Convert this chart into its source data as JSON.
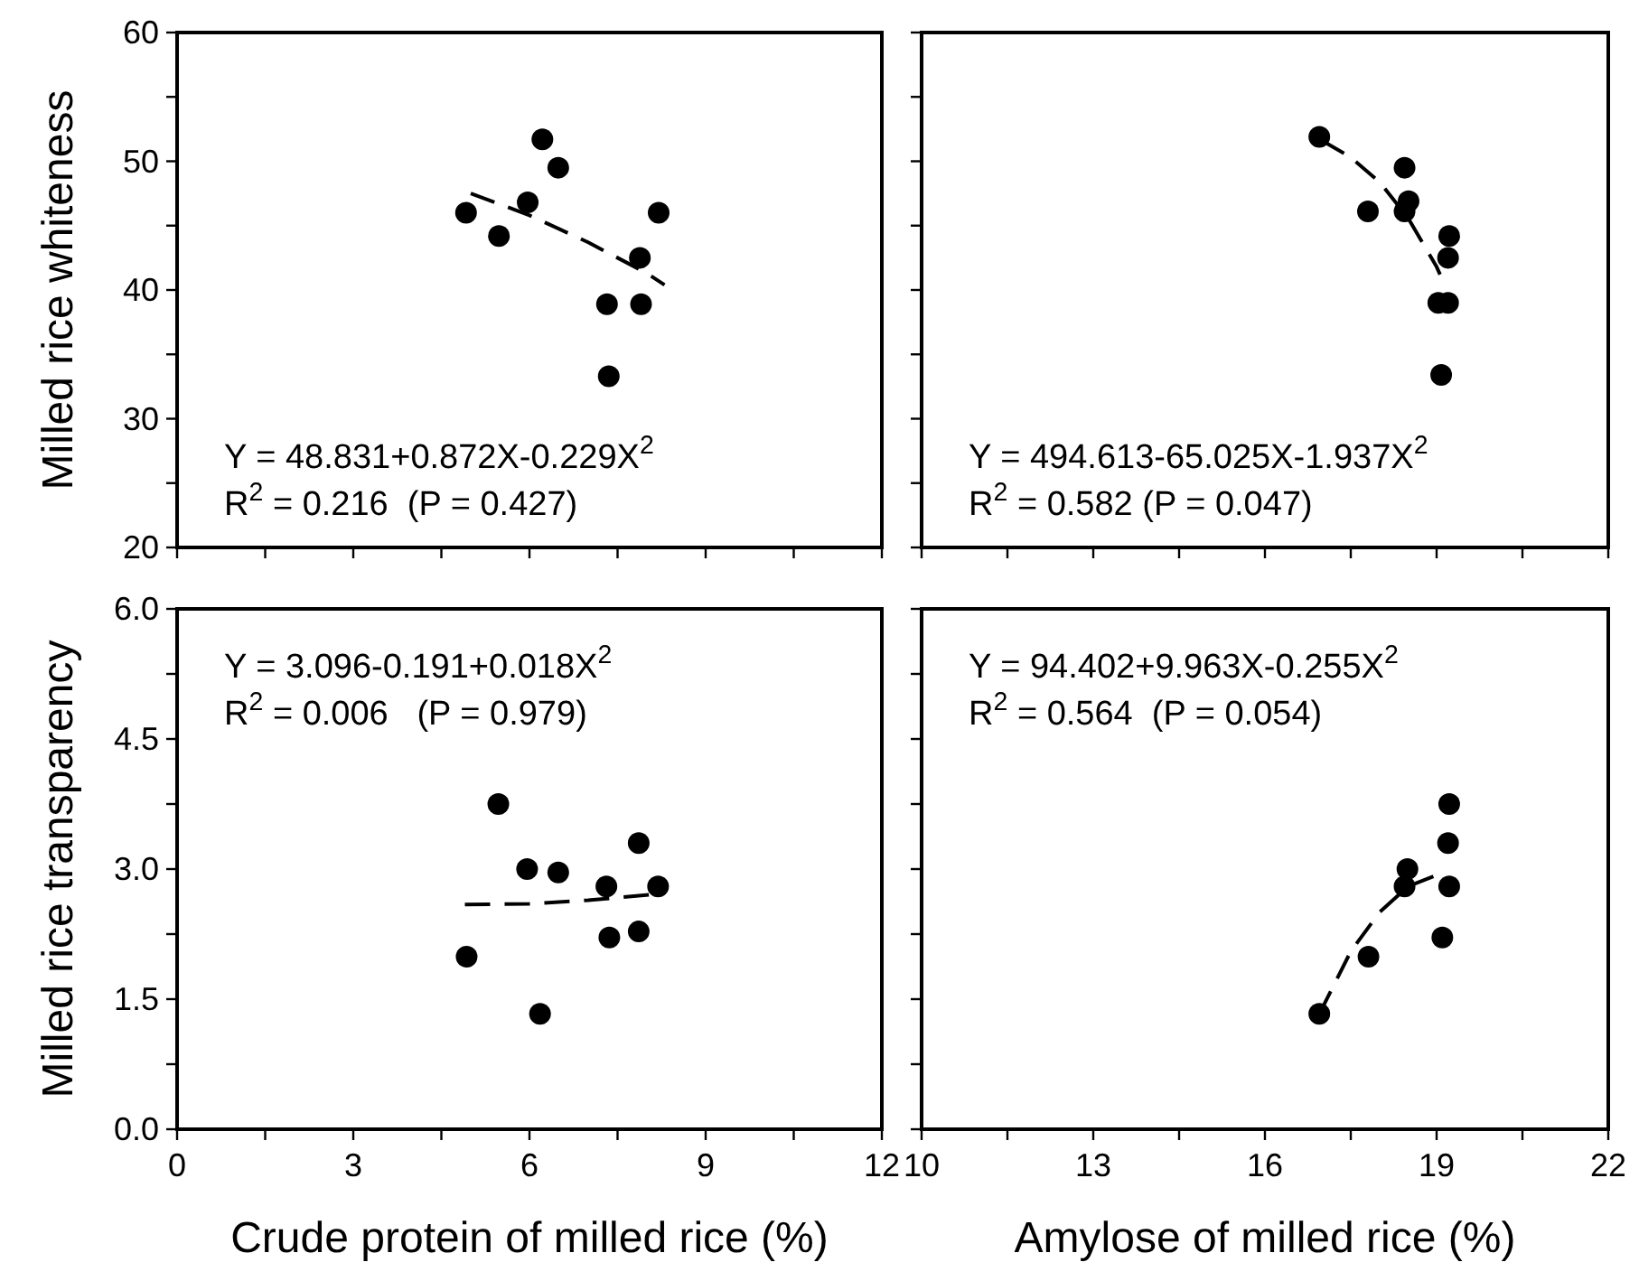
{
  "chart_data": [
    {
      "type": "scatter",
      "ylabel": "Milled rice whiteness",
      "xlim": [
        0,
        12
      ],
      "ylim": [
        20,
        60
      ],
      "xticks": [
        0,
        {
          "value": 1.5,
          "label": null
        },
        3,
        {
          "value": 4.5,
          "label": null
        },
        6,
        {
          "value": 7.5,
          "label": null
        },
        9,
        {
          "value": 10.5,
          "label": null
        },
        12
      ],
      "yticks": [
        20,
        {
          "value": 25,
          "label": null
        },
        30,
        {
          "value": 35,
          "label": null
        },
        40,
        {
          "value": 45,
          "label": null
        },
        50,
        {
          "value": 55,
          "label": null
        },
        60
      ],
      "tick_labels": "y",
      "annotations": [
        "Y = 48.831+0.872X-0.229X$^{2}$",
        "R$^{2}$ = 0.216  (P = 0.427)"
      ],
      "series": [
        {
          "color": "#000000",
          "marker": "circle",
          "x": [
            4.92,
            5.48,
            5.97,
            6.22,
            6.49,
            7.32,
            7.35,
            7.88,
            7.9,
            8.2
          ],
          "values": [
            46,
            44.2,
            46.8,
            51.7,
            49.5,
            38.9,
            33.3,
            42.5,
            38.9,
            46
          ]
        },
        {
          "type": "line",
          "color": "#000000",
          "line_style": "dashed",
          "x": [
            5,
            6,
            7,
            8,
            8.3
          ],
          "values": [
            47.5,
            45.8,
            43.7,
            41.3,
            40.4
          ]
        }
      ]
    },
    {
      "type": "scatter",
      "xlim": [
        10,
        22
      ],
      "ylim": [
        20,
        60
      ],
      "xticks": [
        10,
        {
          "value": 11.5,
          "label": null
        },
        13,
        {
          "value": 14.5,
          "label": null
        },
        16,
        {
          "value": 17.5,
          "label": null
        },
        19,
        {
          "value": 20.5,
          "label": null
        },
        22
      ],
      "yticks": [
        20,
        {
          "value": 25,
          "label": null
        },
        30,
        {
          "value": 35,
          "label": null
        },
        40,
        {
          "value": 45,
          "label": null
        },
        50,
        {
          "value": 55,
          "label": null
        },
        60
      ],
      "tick_labels": false,
      "annotations": [
        "Y = 494.613-65.025X-1.937X$^{2}$",
        "R$^{2}$ = 0.582 (P = 0.047)"
      ],
      "series": [
        {
          "color": "#000000",
          "marker": "circle",
          "x": [
            16.95,
            17.8,
            18.44,
            18.51,
            18.44,
            19.22,
            19.2,
            19.03,
            19.2,
            19.08
          ],
          "values": [
            51.9,
            46.1,
            49.5,
            46.9,
            46.1,
            44.2,
            42.5,
            39,
            39,
            33.4
          ]
        },
        {
          "type": "line",
          "color": "#000000",
          "line_style": "dashed",
          "x": [
            17,
            17.5,
            18,
            18.5,
            19,
            19.06
          ],
          "values": [
            51.6,
            50.3,
            48.4,
            45.6,
            41.8,
            41.2
          ]
        }
      ]
    },
    {
      "type": "scatter",
      "ylabel": "Milled rice transparency",
      "xlabel": "Crude protein of milled rice (%)",
      "xlim": [
        0,
        12
      ],
      "ylim": [
        0,
        6
      ],
      "xticks": [
        0,
        {
          "value": 1.5,
          "label": null
        },
        3,
        {
          "value": 4.5,
          "label": null
        },
        6,
        {
          "value": 7.5,
          "label": null
        },
        9,
        {
          "value": 10.5,
          "label": null
        },
        12
      ],
      "yticks": [
        {
          "value": 0,
          "label": "0.0"
        },
        {
          "value": 0.75,
          "label": null
        },
        1.5,
        {
          "value": 2.25,
          "label": null
        },
        {
          "value": 3,
          "label": "3.0"
        },
        {
          "value": 3.75,
          "label": null
        },
        4.5,
        {
          "value": 5.25,
          "label": null
        },
        {
          "value": 6,
          "label": "6.0"
        }
      ],
      "annotations": [
        "Y = 3.096-0.191+0.018X$^{2}$",
        "R$^{2}$ = 0.006   (P = 0.979)"
      ],
      "series": [
        {
          "color": "#000000",
          "marker": "circle",
          "x": [
            4.93,
            5.47,
            5.96,
            6.49,
            6.18,
            7.31,
            7.36,
            7.86,
            7.86,
            8.19
          ],
          "values": [
            1.99,
            3.75,
            3,
            2.96,
            1.33,
            2.8,
            2.21,
            3.3,
            2.28,
            2.8
          ]
        },
        {
          "type": "line",
          "color": "#000000",
          "line_style": "dashed",
          "x": [
            4.9,
            6,
            7,
            8.3
          ],
          "values": [
            2.59,
            2.6,
            2.64,
            2.72
          ]
        }
      ]
    },
    {
      "type": "scatter",
      "xlabel": "Amylose of milled rice (%)",
      "xlim": [
        10,
        22
      ],
      "ylim": [
        0,
        6
      ],
      "xticks": [
        10,
        {
          "value": 11.5,
          "label": null
        },
        13,
        {
          "value": 14.5,
          "label": null
        },
        16,
        {
          "value": 17.5,
          "label": null
        },
        19,
        {
          "value": 20.5,
          "label": null
        },
        22
      ],
      "yticks": [
        {
          "value": 0,
          "label": null
        },
        {
          "value": 0.75,
          "label": null
        },
        {
          "value": 1.5,
          "label": null
        },
        {
          "value": 2.25,
          "label": null
        },
        {
          "value": 3,
          "label": null
        },
        {
          "value": 3.75,
          "label": null
        },
        {
          "value": 4.5,
          "label": null
        },
        {
          "value": 5.25,
          "label": null
        },
        {
          "value": 6,
          "label": null
        }
      ],
      "tick_labels": "x",
      "annotations": [
        "Y = 94.402+9.963X-0.255X$^{2}$",
        "R$^{2}$ = 0.564  (P = 0.054)"
      ],
      "series": [
        {
          "color": "#000000",
          "marker": "circle",
          "x": [
            16.95,
            17.81,
            18.49,
            18.44,
            19.22,
            19.2,
            19.22,
            19.1
          ],
          "values": [
            1.33,
            1.99,
            3,
            2.8,
            3.75,
            3.3,
            2.8,
            2.21
          ]
        },
        {
          "type": "line",
          "color": "#000000",
          "line_style": "dashed",
          "x": [
            16.95,
            17.5,
            18,
            18.5,
            18.96
          ],
          "values": [
            1.33,
            2.05,
            2.5,
            2.8,
            2.92
          ]
        }
      ]
    }
  ]
}
